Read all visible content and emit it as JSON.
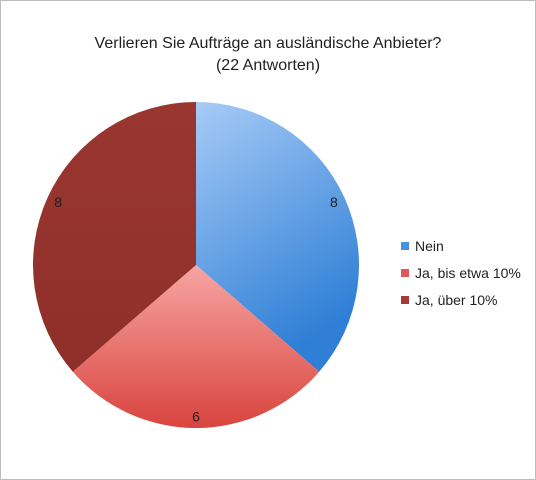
{
  "chart_data": {
    "type": "pie",
    "title": "Verlieren Sie Aufträge an ausländische Anbieter?",
    "subtitle": "(22 Antworten)",
    "categories": [
      "Nein",
      "Ja, bis etwa 10%",
      "Ja, über 10%"
    ],
    "values": [
      8,
      6,
      8
    ],
    "data_labels": [
      "8",
      "6",
      "8"
    ],
    "colors": [
      "#4a90e0",
      "#e05a55",
      "#a33a33"
    ],
    "legend_position": "right"
  },
  "legend": {
    "items": [
      {
        "label": "Nein",
        "color": "#4a90e0"
      },
      {
        "label": "Ja, bis etwa 10%",
        "color": "#e05a55"
      },
      {
        "label": "Ja, über 10%",
        "color": "#a33a33"
      }
    ]
  }
}
